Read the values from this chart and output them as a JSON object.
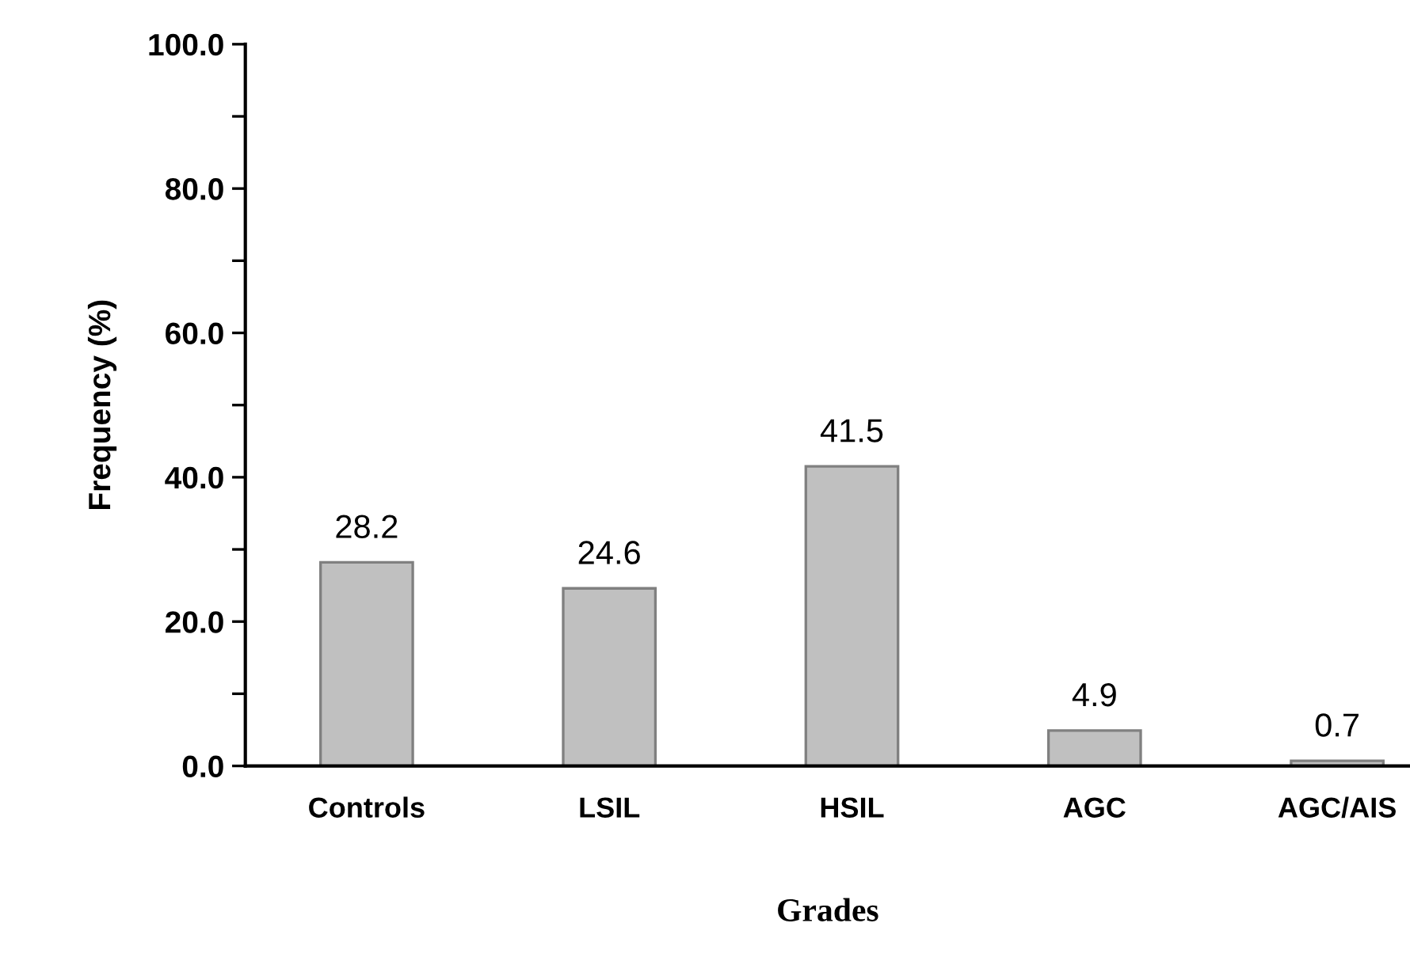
{
  "chart_data": {
    "type": "bar",
    "categories": [
      "Controls",
      "LSIL",
      "HSIL",
      "AGC",
      "AGC/AIS"
    ],
    "values": [
      28.2,
      24.6,
      41.5,
      4.9,
      0.7
    ],
    "color": "#c0c0c0",
    "data_labels": true,
    "xlabel": "Grades",
    "ylabel": "Frequency (%)",
    "ylim": [
      0,
      100
    ],
    "yticks": [
      {
        "value": 0,
        "label": "0.0"
      },
      {
        "value": 10,
        "label": null
      },
      {
        "value": 20,
        "label": "20.0"
      },
      {
        "value": 30,
        "label": null
      },
      {
        "value": 40,
        "label": "40.0"
      },
      {
        "value": 50,
        "label": null
      },
      {
        "value": 60,
        "label": "60.0"
      },
      {
        "value": 70,
        "label": null
      },
      {
        "value": 80,
        "label": "80.0"
      },
      {
        "value": 90,
        "label": null
      },
      {
        "value": 100,
        "label": "100.0"
      }
    ],
    "grid": false,
    "legend": false
  }
}
